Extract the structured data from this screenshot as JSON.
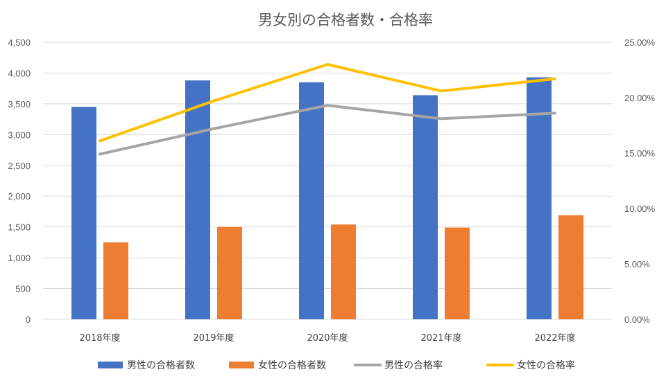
{
  "chart_data": {
    "type": "bar",
    "title": "男女別の合格者数・合格率",
    "categories": [
      "2018年度",
      "2019年度",
      "2020年度",
      "2021年度",
      "2022年度"
    ],
    "series": [
      {
        "name": "男性の合格者数",
        "kind": "bar",
        "axis": "left",
        "color": "#4472c4",
        "values": [
          3450,
          3880,
          3850,
          3640,
          3930
        ]
      },
      {
        "name": "女性の合格者数",
        "kind": "bar",
        "axis": "left",
        "color": "#ed7d31",
        "values": [
          1250,
          1500,
          1540,
          1490,
          1690
        ]
      },
      {
        "name": "男性の合格率",
        "kind": "line",
        "axis": "right",
        "color": "#a5a5a5",
        "values": [
          0.149,
          0.172,
          0.193,
          0.181,
          0.186
        ]
      },
      {
        "name": "女性の合格率",
        "kind": "line",
        "axis": "right",
        "color": "#ffc000",
        "values": [
          0.161,
          0.197,
          0.23,
          0.206,
          0.217
        ]
      }
    ],
    "ylim": [
      0,
      4500
    ],
    "y2lim": [
      0,
      0.25
    ],
    "yticks": [
      "0",
      "500",
      "1,000",
      "1,500",
      "2,000",
      "2,500",
      "3,000",
      "3,500",
      "4,000",
      "4,500"
    ],
    "y2ticks": [
      "0.00%",
      "5.00%",
      "10.00%",
      "15.00%",
      "20.00%",
      "25.00%"
    ],
    "grid": true,
    "legend": "bottom"
  }
}
